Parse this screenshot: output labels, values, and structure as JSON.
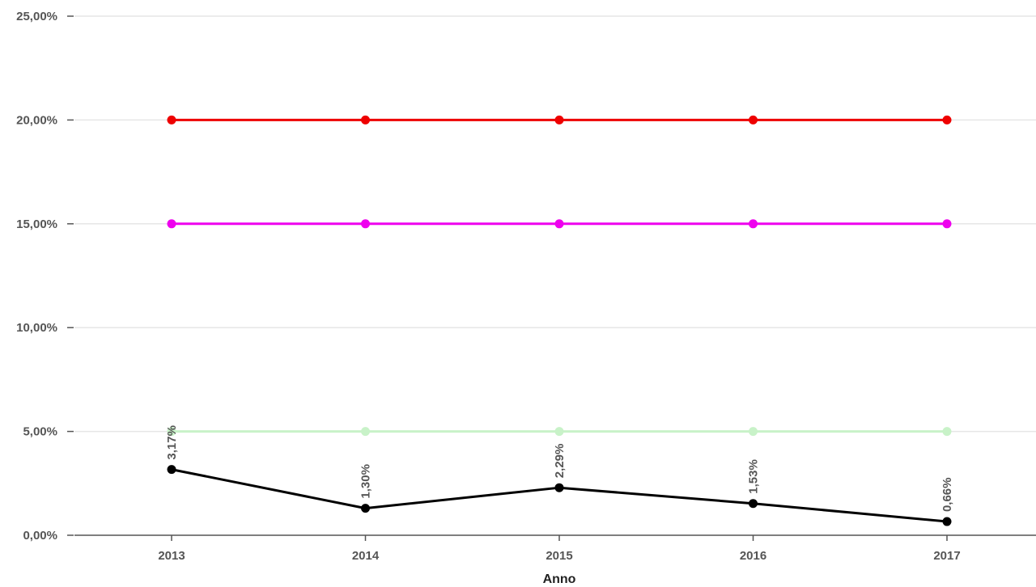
{
  "chart_data": {
    "type": "line",
    "title": "",
    "xlabel": "Anno",
    "ylabel": "",
    "categories": [
      "2013",
      "2014",
      "2015",
      "2016",
      "2017"
    ],
    "ylim": [
      0,
      25
    ],
    "yticks": [
      0,
      5,
      10,
      15,
      20,
      25
    ],
    "ytick_labels": [
      "0,00%",
      "5,00%",
      "10,00%",
      "15,00%",
      "20,00%",
      "25,00%"
    ],
    "grid": true,
    "legend": "none",
    "series": [
      {
        "color": "#ee0000",
        "values": [
          20,
          20,
          20,
          20,
          20
        ]
      },
      {
        "color": "#ee00ee",
        "values": [
          15,
          15,
          15,
          15,
          15
        ]
      },
      {
        "color": "#c8f2c8",
        "values": [
          5,
          5,
          5,
          5,
          5
        ]
      },
      {
        "color": "#000000",
        "values": [
          3.17,
          1.3,
          2.29,
          1.53,
          0.66
        ],
        "labels": [
          "3,17%",
          "1,30%",
          "2,29%",
          "1,53%",
          "0,66%"
        ]
      }
    ]
  }
}
